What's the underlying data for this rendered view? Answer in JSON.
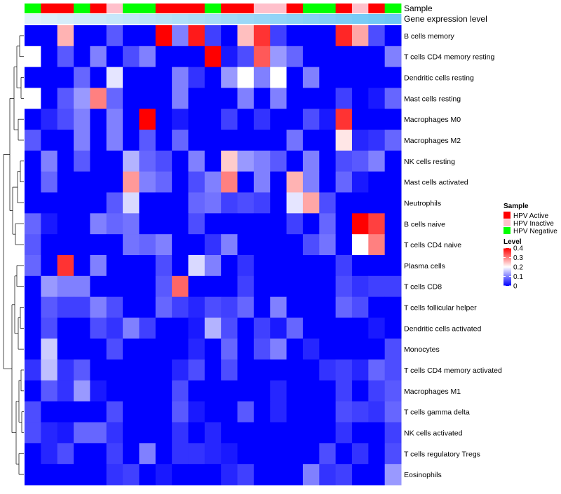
{
  "chart_data": {
    "type": "heatmap",
    "annotation_labels": [
      "Sample",
      "Gene expression level"
    ],
    "rows": [
      "B cells memory",
      "T cells CD4 memory resting",
      "Dendritic cells resting",
      "Mast cells resting",
      "Macrophages M0",
      "Macrophages M2",
      "NK cells resting",
      "Mast cells activated",
      "Neutrophils",
      "B cells naive",
      "T cells CD4 naive",
      "Plasma cells",
      "T cells CD8",
      "T cells follicular helper",
      "Dendritic cells activated",
      "Monocytes",
      "T cells CD4 memory activated",
      "Macrophages M1",
      "T cells gamma delta",
      "NK cells activated",
      "T cells regulatory  Tregs",
      "Eosinophils"
    ],
    "sample_groups": [
      "Negative",
      "Active",
      "Active",
      "Negative",
      "Active",
      "Inactive",
      "Negative",
      "Negative",
      "Active",
      "Active",
      "Active",
      "Negative",
      "Active",
      "Active",
      "Inactive",
      "Inactive",
      "Active",
      "Negative",
      "Negative",
      "Active",
      "Inactive",
      "Active",
      "Negative"
    ],
    "expression_level": [
      0.04,
      0.08,
      0.12,
      0.16,
      0.2,
      0.24,
      0.28,
      0.32,
      0.36,
      0.4,
      0.44,
      0.48,
      0.52,
      0.56,
      0.6,
      0.64,
      0.68,
      0.72,
      0.76,
      0.8,
      0.84,
      0.88,
      0.92
    ],
    "values": [
      [
        0,
        0,
        0.26,
        0,
        0,
        0.07,
        0,
        0,
        0.4,
        0.1,
        0.38,
        0.05,
        0,
        0.25,
        0.36,
        0.05,
        0,
        0,
        0,
        0.37,
        0.27,
        0.06,
        0
      ],
      [
        0.2,
        0,
        0.07,
        0,
        0.1,
        0,
        0.06,
        0.1,
        0,
        0,
        0,
        0.4,
        0.02,
        0.06,
        0.33,
        0.12,
        0.08,
        0,
        0,
        0,
        0,
        0,
        0.1
      ],
      [
        0,
        0,
        0,
        0.08,
        0,
        0.18,
        0,
        0,
        0,
        0.1,
        0.04,
        0,
        0.12,
        0.2,
        0.1,
        0.2,
        0,
        0.1,
        0,
        0,
        0,
        0,
        0
      ],
      [
        0.2,
        0,
        0.07,
        0.12,
        0.3,
        0.08,
        0,
        0,
        0,
        0.1,
        0,
        0,
        0,
        0.1,
        0,
        0.1,
        0,
        0,
        0,
        0.05,
        0,
        0.02,
        0.08
      ],
      [
        0,
        0.03,
        0.06,
        0.1,
        0,
        0.1,
        0,
        0.4,
        0,
        0.02,
        0,
        0,
        0.05,
        0,
        0.04,
        0,
        0,
        0.06,
        0.02,
        0.36,
        0,
        0,
        0
      ],
      [
        0.07,
        0,
        0,
        0.1,
        0,
        0.1,
        0,
        0.07,
        0,
        0.08,
        0,
        0,
        0,
        0,
        0,
        0,
        0.09,
        0,
        0,
        0.22,
        0.03,
        0.04,
        0.08
      ],
      [
        0,
        0.1,
        0,
        0.07,
        0,
        0,
        0.14,
        0.08,
        0.06,
        0,
        0.1,
        0,
        0.24,
        0.12,
        0.1,
        0.07,
        0,
        0.1,
        0,
        0.06,
        0.07,
        0.1,
        0
      ],
      [
        0,
        0.08,
        0,
        0,
        0,
        0,
        0.28,
        0.1,
        0.08,
        0,
        0.06,
        0.1,
        0.3,
        0,
        0.1,
        0,
        0.26,
        0.1,
        0,
        0.08,
        0.02,
        0,
        0
      ],
      [
        0,
        0,
        0,
        0,
        0,
        0.07,
        0.17,
        0,
        0,
        0,
        0.08,
        0.09,
        0.05,
        0.06,
        0.05,
        0,
        0.18,
        0.27,
        0.06,
        0,
        0,
        0,
        0
      ],
      [
        0.08,
        0.02,
        0,
        0,
        0.1,
        0.08,
        0.09,
        0,
        0,
        0,
        0.06,
        0,
        0,
        0,
        0,
        0,
        0.05,
        0,
        0.08,
        0,
        0.4,
        0.35,
        0
      ],
      [
        0.07,
        0,
        0,
        0,
        0,
        0,
        0.09,
        0.08,
        0.1,
        0,
        0,
        0.04,
        0.1,
        0,
        0,
        0,
        0,
        0.06,
        0.09,
        0,
        0.2,
        0.3,
        0
      ],
      [
        0.08,
        0,
        0.36,
        0,
        0.1,
        0,
        0,
        0,
        0.06,
        0,
        0.17,
        0.1,
        0,
        0.04,
        0,
        0,
        0,
        0,
        0,
        0.05,
        0,
        0,
        0
      ],
      [
        0,
        0.12,
        0.1,
        0.1,
        0,
        0,
        0,
        0,
        0.07,
        0.32,
        0,
        0,
        0,
        0.05,
        0,
        0,
        0,
        0,
        0,
        0.06,
        0.04,
        0.05,
        0.05
      ],
      [
        0,
        0.07,
        0.05,
        0.05,
        0.1,
        0.06,
        0,
        0,
        0.08,
        0.05,
        0.03,
        0.06,
        0.05,
        0.08,
        0,
        0.1,
        0,
        0,
        0,
        0.08,
        0.06,
        0,
        0
      ],
      [
        0,
        0.06,
        0,
        0,
        0.06,
        0.04,
        0.1,
        0.05,
        0,
        0,
        0.02,
        0.14,
        0.06,
        0,
        0.05,
        0.02,
        0.08,
        0,
        0,
        0,
        0,
        0.02,
        0
      ],
      [
        0,
        0.16,
        0,
        0,
        0,
        0.06,
        0,
        0,
        0,
        0,
        0.03,
        0,
        0.08,
        0,
        0.06,
        0.1,
        0,
        0.03,
        0,
        0,
        0,
        0,
        0.06
      ],
      [
        0.04,
        0.15,
        0.04,
        0.07,
        0,
        0,
        0,
        0,
        0,
        0.03,
        0.06,
        0,
        0.06,
        0,
        0,
        0,
        0,
        0,
        0.04,
        0.05,
        0.03,
        0.08,
        0.06
      ],
      [
        0,
        0.07,
        0.04,
        0.12,
        0.02,
        0,
        0,
        0,
        0,
        0.06,
        0,
        0,
        0,
        0,
        0,
        0.03,
        0,
        0,
        0,
        0.05,
        0,
        0.05,
        0.07
      ],
      [
        0.06,
        0,
        0,
        0,
        0,
        0.06,
        0,
        0,
        0,
        0.07,
        0.02,
        0,
        0,
        0.07,
        0,
        0.03,
        0,
        0,
        0,
        0.06,
        0.05,
        0.04,
        0.08
      ],
      [
        0.06,
        0.03,
        0.02,
        0.08,
        0.08,
        0.04,
        0,
        0,
        0,
        0.04,
        0,
        0.03,
        0,
        0,
        0,
        0,
        0,
        0,
        0,
        0.04,
        0,
        0,
        0.05
      ],
      [
        0,
        0.03,
        0.06,
        0,
        0,
        0.05,
        0,
        0.1,
        0,
        0.04,
        0.04,
        0.03,
        0.02,
        0,
        0,
        0,
        0,
        0,
        0.06,
        0,
        0.04,
        0,
        0.06
      ],
      [
        0,
        0,
        0,
        0,
        0,
        0.04,
        0.05,
        0,
        0.02,
        0,
        0,
        0,
        0.03,
        0.05,
        0,
        0,
        0,
        0.1,
        0.04,
        0.05,
        0,
        0,
        0.12
      ]
    ],
    "legend_sample_title": "Sample",
    "legend_sample_entries": [
      {
        "label": "HPV Active",
        "color": "#ff0000"
      },
      {
        "label": "HPV Inactive",
        "color": "#ffc0cb"
      },
      {
        "label": "HPV Negative",
        "color": "#00ff00"
      }
    ],
    "legend_level_title": "Level",
    "legend_level_ticks": [
      "0.4",
      "0.3",
      "0.2",
      "0.1",
      "0"
    ],
    "color_scale": {
      "low": "#0000ff",
      "mid": "#ffffff",
      "high": "#ff0000",
      "min": 0,
      "max": 0.4
    },
    "expression_scale": {
      "low": "#e6f3fb",
      "high": "#62c3f5"
    },
    "group_colors": {
      "Active": "#ff0000",
      "Inactive": "#ffc0cb",
      "Negative": "#00ff00"
    }
  }
}
